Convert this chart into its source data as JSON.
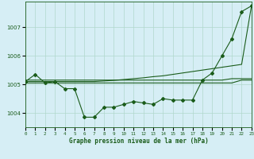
{
  "title": "Graphe pression niveau de la mer (hPa)",
  "background_color": "#d6eef5",
  "grid_color": "#b0d8cc",
  "line_color": "#1a5c1a",
  "ylim": [
    1003.5,
    1007.9
  ],
  "yticks": [
    1004,
    1005,
    1006,
    1007
  ],
  "x_labels": [
    "0",
    "1",
    "2",
    "3",
    "4",
    "5",
    "6",
    "7",
    "8",
    "9",
    "10",
    "11",
    "12",
    "13",
    "14",
    "15",
    "16",
    "17",
    "18",
    "19",
    "20",
    "21",
    "22",
    "23"
  ],
  "series": {
    "jagged": [
      1005.1,
      1005.35,
      1005.05,
      1005.1,
      1004.85,
      1004.85,
      1003.85,
      1003.85,
      1004.2,
      1004.2,
      1004.3,
      1004.4,
      1004.35,
      1004.3,
      1004.5,
      1004.45,
      1004.45,
      1004.45,
      1005.15,
      1005.4,
      1006.0,
      1006.6,
      1007.55,
      1007.75
    ],
    "line_diag": [
      1005.1,
      1005.1,
      1005.1,
      1005.1,
      1005.1,
      1005.1,
      1005.1,
      1005.1,
      1005.12,
      1005.14,
      1005.17,
      1005.2,
      1005.23,
      1005.27,
      1005.3,
      1005.35,
      1005.4,
      1005.45,
      1005.5,
      1005.55,
      1005.6,
      1005.65,
      1005.7,
      1007.75
    ],
    "line_flat1": [
      1005.05,
      1005.05,
      1005.05,
      1005.05,
      1005.05,
      1005.05,
      1005.05,
      1005.05,
      1005.05,
      1005.05,
      1005.05,
      1005.05,
      1005.05,
      1005.05,
      1005.05,
      1005.05,
      1005.05,
      1005.05,
      1005.05,
      1005.05,
      1005.05,
      1005.05,
      1005.15,
      1005.15
    ],
    "line_flat2": [
      1005.15,
      1005.15,
      1005.15,
      1005.15,
      1005.15,
      1005.15,
      1005.15,
      1005.15,
      1005.15,
      1005.15,
      1005.15,
      1005.15,
      1005.15,
      1005.15,
      1005.15,
      1005.15,
      1005.15,
      1005.15,
      1005.15,
      1005.15,
      1005.15,
      1005.2,
      1005.2,
      1005.2
    ]
  }
}
